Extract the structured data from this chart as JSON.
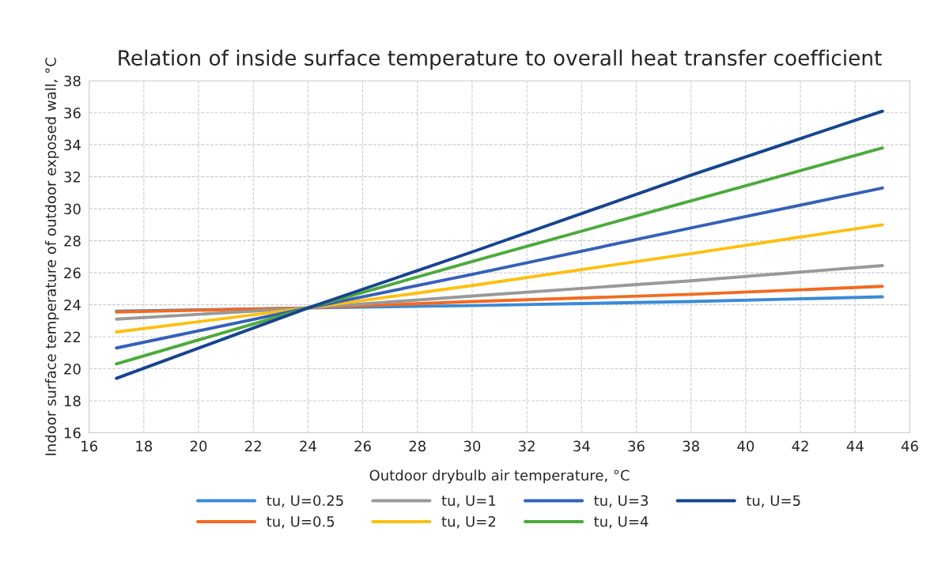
{
  "chart_data": {
    "type": "line",
    "title": "Relation of inside surface temperature to overall heat transfer coefficient",
    "xlabel": "Outdoor drybulb air temperature, °C",
    "ylabel": "Indoor surface temperature of outdoor exposed wall, °C",
    "x": [
      17,
      24,
      30,
      38,
      45
    ],
    "series": [
      {
        "name": "tu, U=0.25",
        "color": "#3a8ad6",
        "values": [
          23.6,
          23.8,
          23.95,
          24.2,
          24.5
        ]
      },
      {
        "name": "tu, U=0.5",
        "color": "#f26a21",
        "values": [
          23.55,
          23.8,
          24.2,
          24.65,
          25.15
        ]
      },
      {
        "name": "tu, U=1",
        "color": "#999999",
        "values": [
          23.1,
          23.8,
          24.55,
          25.5,
          26.45
        ]
      },
      {
        "name": "tu, U=2",
        "color": "#fdc010",
        "values": [
          22.3,
          23.8,
          25.2,
          27.2,
          29.0
        ]
      },
      {
        "name": "tu, U=3",
        "color": "#3560b8",
        "values": [
          21.3,
          23.8,
          25.9,
          28.8,
          31.3
        ]
      },
      {
        "name": "tu, U=4",
        "color": "#4caa3c",
        "values": [
          20.3,
          23.8,
          26.7,
          30.5,
          33.8
        ]
      },
      {
        "name": "tu, U=5",
        "color": "#17448e",
        "values": [
          19.4,
          23.8,
          27.3,
          32.1,
          36.1
        ]
      }
    ],
    "xlim": [
      16,
      46
    ],
    "xticks": [
      16,
      18,
      20,
      22,
      24,
      26,
      28,
      30,
      32,
      34,
      36,
      38,
      40,
      42,
      44,
      46
    ],
    "ylim": [
      16,
      38
    ],
    "yticks": [
      16,
      18,
      20,
      22,
      24,
      26,
      28,
      30,
      32,
      34,
      36,
      38
    ],
    "grid": true,
    "legend": "bottom",
    "marker": "none",
    "line_style": "solid"
  }
}
